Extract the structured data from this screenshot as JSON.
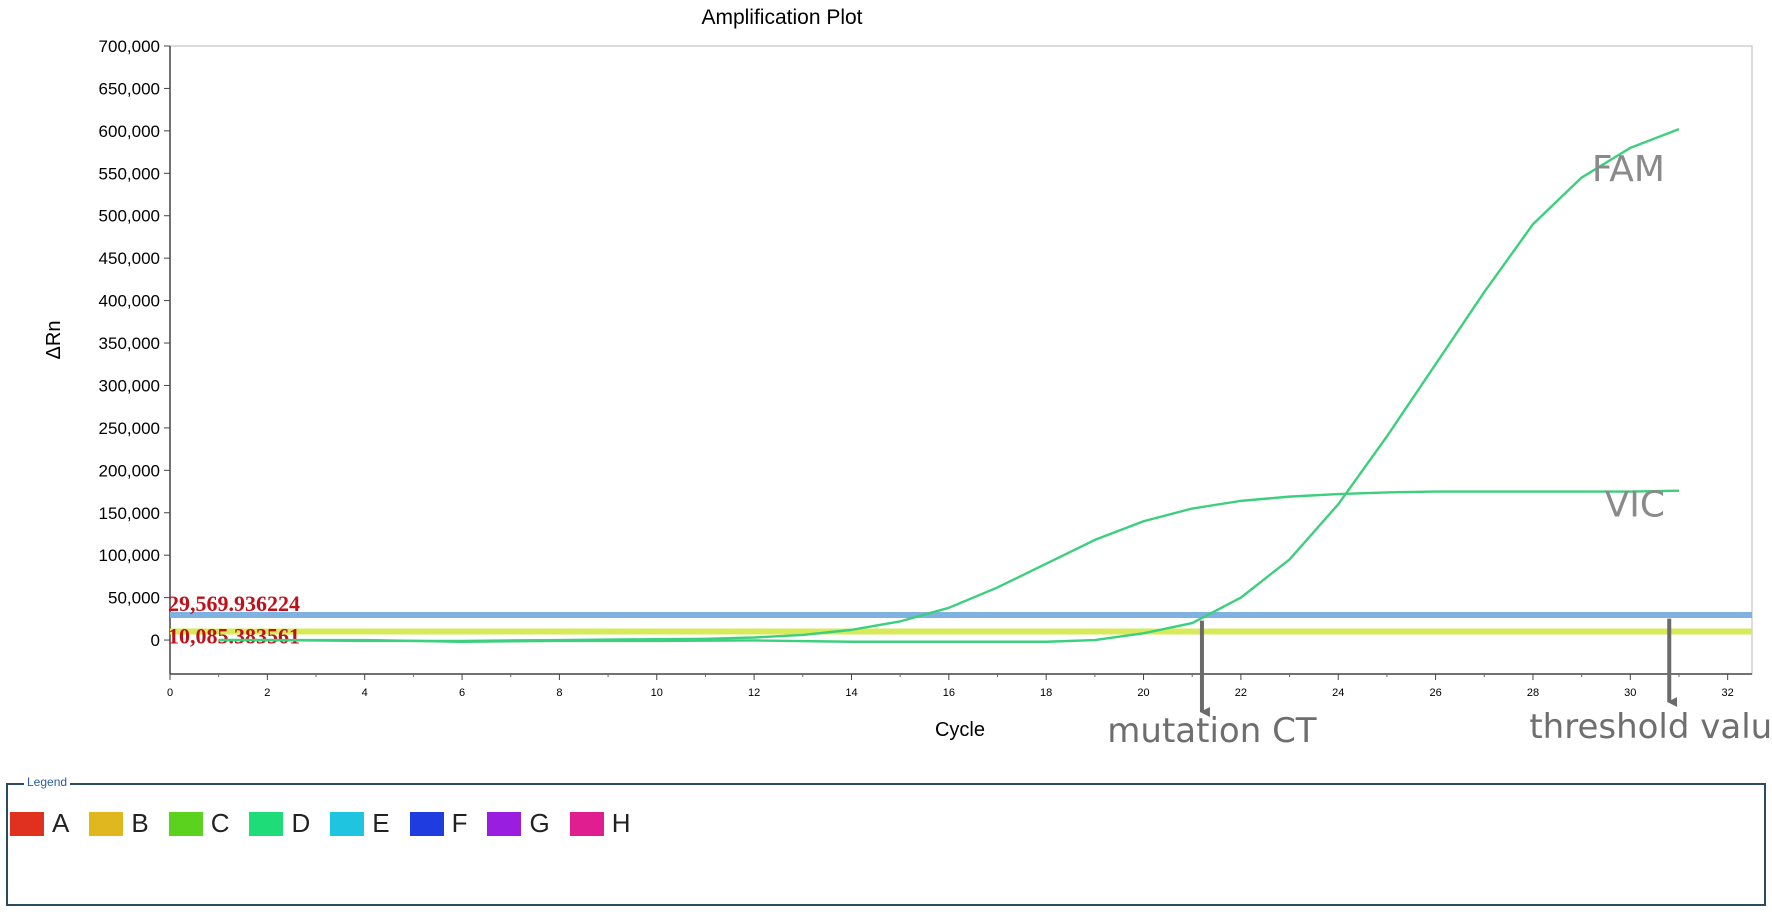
{
  "chart_data": {
    "type": "line",
    "title": "Amplification Plot",
    "xlabel": "Cycle",
    "ylabel": "ΔRn",
    "xlim": [
      0,
      32.5
    ],
    "ylim": [
      -40000,
      700000
    ],
    "x_ticks": [
      "0",
      "2",
      "4",
      "6",
      "8",
      "10",
      "12",
      "14",
      "16",
      "18",
      "20",
      "22",
      "24",
      "26",
      "28",
      "30",
      "32"
    ],
    "y_ticks": [
      "0",
      "50,000",
      "100,000",
      "150,000",
      "200,000",
      "250,000",
      "300,000",
      "350,000",
      "400,000",
      "450,000",
      "500,000",
      "550,000",
      "600,000",
      "650,000",
      "700,000"
    ],
    "grid": true,
    "series": [
      {
        "name": "FAM",
        "color": "#3ccf7d",
        "x": [
          1,
          2,
          4,
          6,
          8,
          10,
          12,
          14,
          16,
          18,
          19,
          20,
          21,
          22,
          23,
          24,
          25,
          26,
          27,
          28,
          29,
          30,
          31
        ],
        "y": [
          0,
          0,
          0,
          -2000,
          -1000,
          -1000,
          -500,
          -2000,
          -2000,
          -2000,
          0,
          8000,
          20000,
          50000,
          95000,
          160000,
          240000,
          325000,
          410000,
          490000,
          545000,
          580000,
          602000
        ]
      },
      {
        "name": "VIC",
        "color": "#3ccf7d",
        "x": [
          1,
          2,
          4,
          6,
          8,
          10,
          11,
          12,
          13,
          14,
          15,
          16,
          17,
          18,
          19,
          20,
          21,
          22,
          23,
          24,
          25,
          26,
          27,
          28,
          29,
          30,
          31
        ],
        "y": [
          0,
          0,
          -1000,
          -1000,
          0,
          1000,
          1500,
          3000,
          6000,
          12000,
          22000,
          38000,
          62000,
          90000,
          118000,
          140000,
          155000,
          164000,
          169000,
          172000,
          174000,
          175000,
          175000,
          175000,
          175000,
          175000,
          176000
        ]
      }
    ],
    "thresholds": [
      {
        "label": "29,569.936224",
        "value": 29569.936224,
        "color": "#7fb2e0"
      },
      {
        "label": "10,085.383561",
        "value": 10085.383561,
        "color": "#d7ea5a"
      }
    ],
    "annotations": {
      "mutation": {
        "text": "mutation CT",
        "x": 21.2
      },
      "threshold": {
        "text": "threshold value",
        "x": 30.8
      }
    }
  },
  "legend": {
    "title": "Legend",
    "items": [
      {
        "label": "A",
        "color": "#e0301e"
      },
      {
        "label": "B",
        "color": "#e0b71e"
      },
      {
        "label": "C",
        "color": "#5ad21e"
      },
      {
        "label": "D",
        "color": "#1edc78"
      },
      {
        "label": "E",
        "color": "#1ec4e0"
      },
      {
        "label": "F",
        "color": "#1e3ce0"
      },
      {
        "label": "G",
        "color": "#9a1ee0"
      },
      {
        "label": "H",
        "color": "#e01e90"
      }
    ]
  }
}
